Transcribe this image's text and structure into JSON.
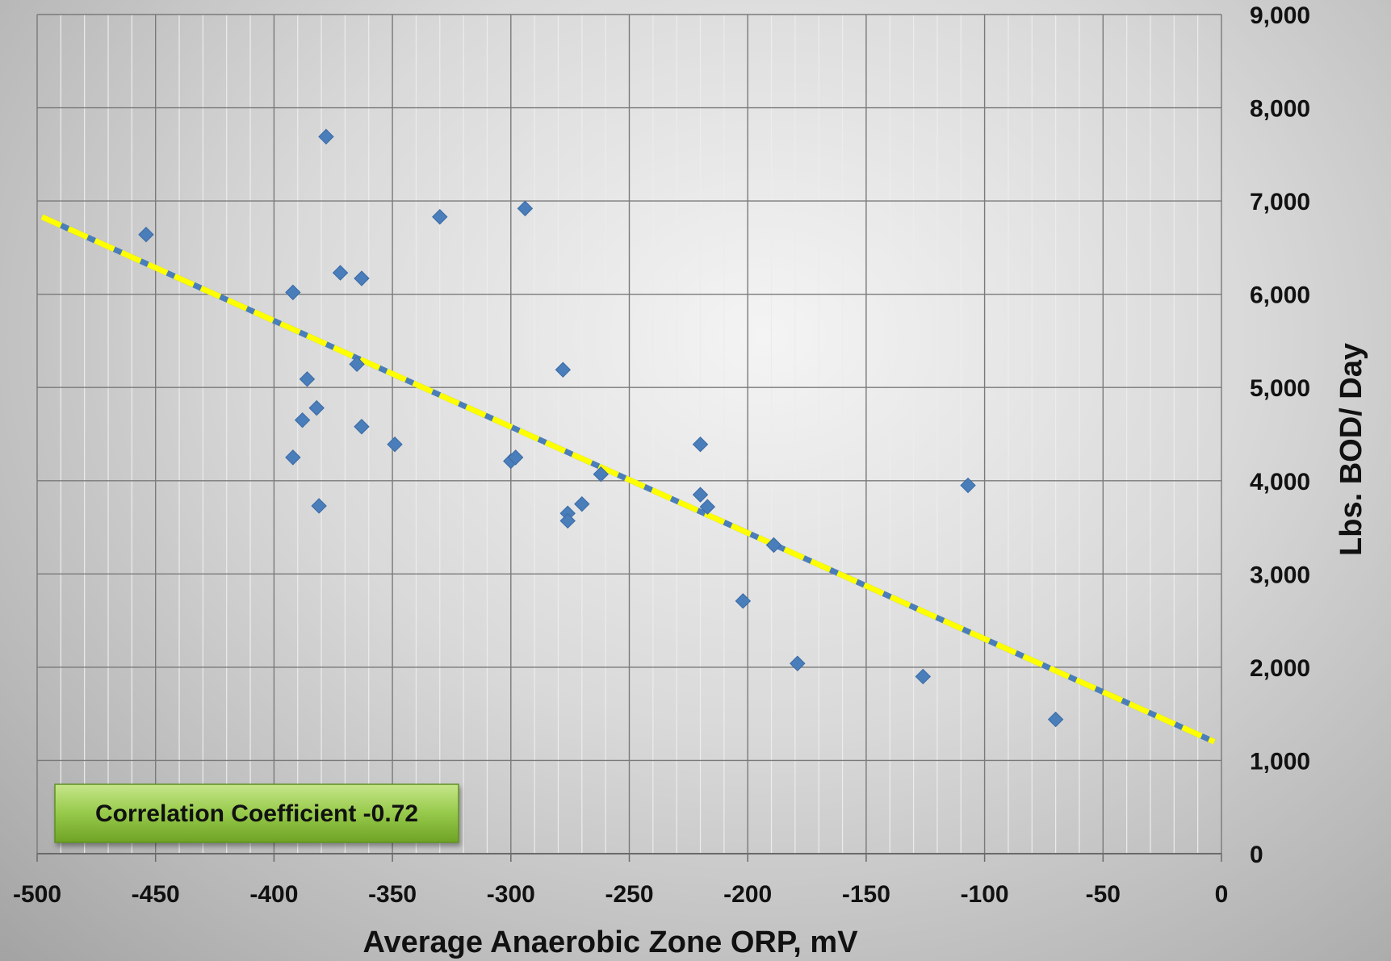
{
  "chart_data": {
    "type": "scatter",
    "title": "",
    "xlabel": "Average Anaerobic Zone ORP, mV",
    "ylabel": "Lbs. BOD/ Day",
    "xlim": [
      -500,
      0
    ],
    "ylim": [
      0,
      9000
    ],
    "x_major_ticks": [
      -500,
      -450,
      -400,
      -350,
      -300,
      -250,
      -200,
      -150,
      -100,
      -50,
      0
    ],
    "x_tick_labels": [
      "-500",
      "-450",
      "-400",
      "-350",
      "-300",
      "-250",
      "-200",
      "-150",
      "-100",
      "-50",
      "0"
    ],
    "y_major_ticks": [
      0,
      1000,
      2000,
      3000,
      4000,
      5000,
      6000,
      7000,
      8000,
      9000
    ],
    "y_tick_labels": [
      "0",
      "1,000",
      "2,000",
      "3,000",
      "4,000",
      "5,000",
      "6,000",
      "7,000",
      "8,000",
      "9,000"
    ],
    "y_axis_position": "right",
    "grid": true,
    "legend": "none",
    "marker": "diamond",
    "marker_color": "#4a7ebb",
    "trendline_color": "#ffff00",
    "series": [
      {
        "points": [
          {
            "x": -454,
            "y": 6640
          },
          {
            "x": -392,
            "y": 6020
          },
          {
            "x": -378,
            "y": 7690
          },
          {
            "x": -372,
            "y": 6230
          },
          {
            "x": -363,
            "y": 6170
          },
          {
            "x": -365,
            "y": 5250
          },
          {
            "x": -386,
            "y": 5090
          },
          {
            "x": -382,
            "y": 4780
          },
          {
            "x": -388,
            "y": 4650
          },
          {
            "x": -363,
            "y": 4580
          },
          {
            "x": -392,
            "y": 4250
          },
          {
            "x": -381,
            "y": 3730
          },
          {
            "x": -349,
            "y": 4390
          },
          {
            "x": -330,
            "y": 6830
          },
          {
            "x": -294,
            "y": 6920
          },
          {
            "x": -300,
            "y": 4210
          },
          {
            "x": -298,
            "y": 4250
          },
          {
            "x": -278,
            "y": 5190
          },
          {
            "x": -276,
            "y": 3650
          },
          {
            "x": -276,
            "y": 3570
          },
          {
            "x": -270,
            "y": 3750
          },
          {
            "x": -262,
            "y": 4070
          },
          {
            "x": -220,
            "y": 4390
          },
          {
            "x": -220,
            "y": 3850
          },
          {
            "x": -217,
            "y": 3720
          },
          {
            "x": -202,
            "y": 2710
          },
          {
            "x": -189,
            "y": 3310
          },
          {
            "x": -179,
            "y": 2040
          },
          {
            "x": -126,
            "y": 1900
          },
          {
            "x": -107,
            "y": 3950
          },
          {
            "x": -70,
            "y": 1440
          }
        ]
      }
    ],
    "trendline": {
      "x": [
        -498,
        -3
      ],
      "y": [
        6830,
        1200
      ],
      "style": "dashed"
    },
    "annotations": [
      {
        "text": "Correlation Coefficient -0.72",
        "fill": "#8cc63f"
      }
    ]
  }
}
